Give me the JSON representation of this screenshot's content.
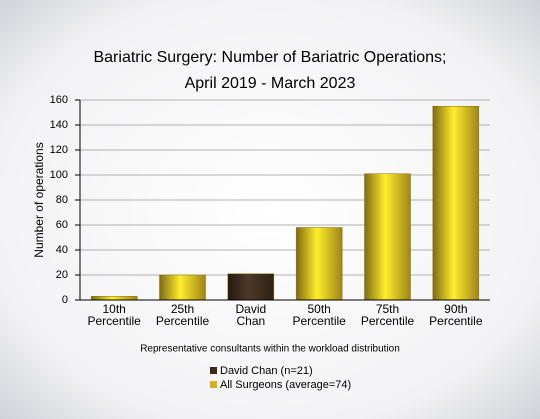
{
  "chart_data": {
    "type": "bar",
    "title": [
      "Bariatric Surgery: Number of Bariatric Operations;",
      "April 2019 - March 2023"
    ],
    "x_label": "Representative consultants within the workload distribution",
    "y_label": "Number of operations",
    "categories": [
      "10th Percentile",
      "25th Percentile",
      "David Chan",
      "50th Percentile",
      "75th Percentile",
      "90th Percentile"
    ],
    "series": [
      {
        "name": "David Chan (n=21)",
        "color": "#3a2a1c",
        "values": [
          null,
          null,
          21,
          null,
          null,
          null
        ]
      },
      {
        "name": "All Surgeons (average=74)",
        "color": "#d4b020",
        "values": [
          3,
          20,
          null,
          58,
          101,
          155
        ]
      }
    ],
    "ylim": [
      0,
      160
    ],
    "yticks": [
      0,
      20,
      40,
      60,
      80,
      100,
      120,
      140,
      160
    ],
    "grid": true
  }
}
